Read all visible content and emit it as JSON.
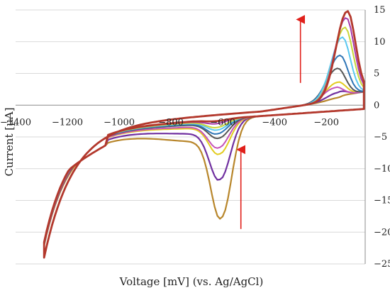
{
  "chart_data": {
    "type": "line",
    "xlabel": "Voltage [mV] (vs. Ag/AgCl)",
    "ylabel": "Current [µA]",
    "xlim": [
      -1400,
      -50
    ],
    "ylim": [
      -25,
      15
    ],
    "x_ticks": [
      -1400,
      -1200,
      -1000,
      -800,
      -600,
      -400,
      -200
    ],
    "y_ticks": [
      15,
      10,
      5,
      0,
      -5,
      -10,
      -15,
      -20,
      -25
    ],
    "grid": true,
    "legend": "none",
    "annotations": [
      {
        "kind": "arrow",
        "direction": "up",
        "x": -300,
        "y_from": 3.5,
        "y_to": 13.5
      },
      {
        "kind": "arrow",
        "direction": "up",
        "x": -530,
        "y_from": -19.5,
        "y_to": -7
      }
    ],
    "series": [
      {
        "color": "#b8862b",
        "red_v": -605,
        "red_peak": -19.0,
        "ox_v": -150,
        "ox_peak": 0.4,
        "width": 2.2
      },
      {
        "color": "#7030a0",
        "red_v": -610,
        "red_peak": -13.0,
        "ox_v": -155,
        "ox_peak": 1.2,
        "width": 2.2
      },
      {
        "color": "#e2cc1f",
        "red_v": -612,
        "red_peak": -9.0,
        "ox_v": -160,
        "ox_peak": 2.8,
        "width": 2
      },
      {
        "color": "#c553b8",
        "red_v": -615,
        "red_peak": -8.0,
        "ox_v": -170,
        "ox_peak": 2.0,
        "width": 2
      },
      {
        "color": "#555555",
        "red_v": -615,
        "red_peak": -6.5,
        "ox_v": -160,
        "ox_peak": 5.0,
        "width": 2
      },
      {
        "color": "#2e75b6",
        "red_v": -620,
        "red_peak": -5.8,
        "ox_v": -150,
        "ox_peak": 7.0,
        "width": 2
      },
      {
        "color": "#5ac8f0",
        "red_v": -620,
        "red_peak": -5.2,
        "ox_v": -140,
        "ox_peak": 9.8,
        "width": 2
      },
      {
        "color": "#c9d63a",
        "red_v": -622,
        "red_peak": -4.8,
        "ox_v": -130,
        "ox_peak": 11.3,
        "width": 2
      },
      {
        "color": "#a63aa8",
        "red_v": -625,
        "red_peak": -4.2,
        "ox_v": -125,
        "ox_peak": 12.8,
        "width": 2
      },
      {
        "color": "#b3382c",
        "red_v": -625,
        "red_peak": -3.8,
        "ox_v": -120,
        "ox_peak": 13.8,
        "width": 2.8
      }
    ],
    "sweep": {
      "v_min": -1290,
      "v_max": -55,
      "i_at_v_min": -23.5
    }
  },
  "colors": {
    "arrow": "#e0201b",
    "axis": "#8c8c8c",
    "grid": "#d9d9d9"
  }
}
